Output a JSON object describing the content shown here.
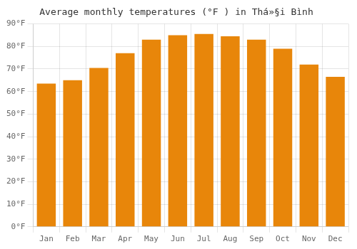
{
  "chart_data": {
    "type": "bar",
    "title": "Average monthly temperatures (°F ) in Thá»§i Bình",
    "categories": [
      "Jan",
      "Feb",
      "Mar",
      "Apr",
      "May",
      "Jun",
      "Jul",
      "Aug",
      "Sep",
      "Oct",
      "Nov",
      "Dec"
    ],
    "values": [
      63.5,
      65.0,
      70.5,
      77.0,
      83.0,
      85.0,
      85.5,
      84.5,
      83.0,
      79.0,
      72.0,
      66.5
    ],
    "color": "#E8860A",
    "ylim": [
      0,
      90
    ],
    "yticks": [
      {
        "value": 0,
        "label": "0°F"
      },
      {
        "value": 10,
        "label": "10°F"
      },
      {
        "value": 20,
        "label": "20°F"
      },
      {
        "value": 30,
        "label": "30°F"
      },
      {
        "value": 40,
        "label": "40°F"
      },
      {
        "value": 50,
        "label": "50°F"
      },
      {
        "value": 60,
        "label": "60°F"
      },
      {
        "value": 70,
        "label": "70°F"
      },
      {
        "value": 80,
        "label": "80°F"
      },
      {
        "value": 90,
        "label": "90°F"
      }
    ],
    "grid": true
  }
}
